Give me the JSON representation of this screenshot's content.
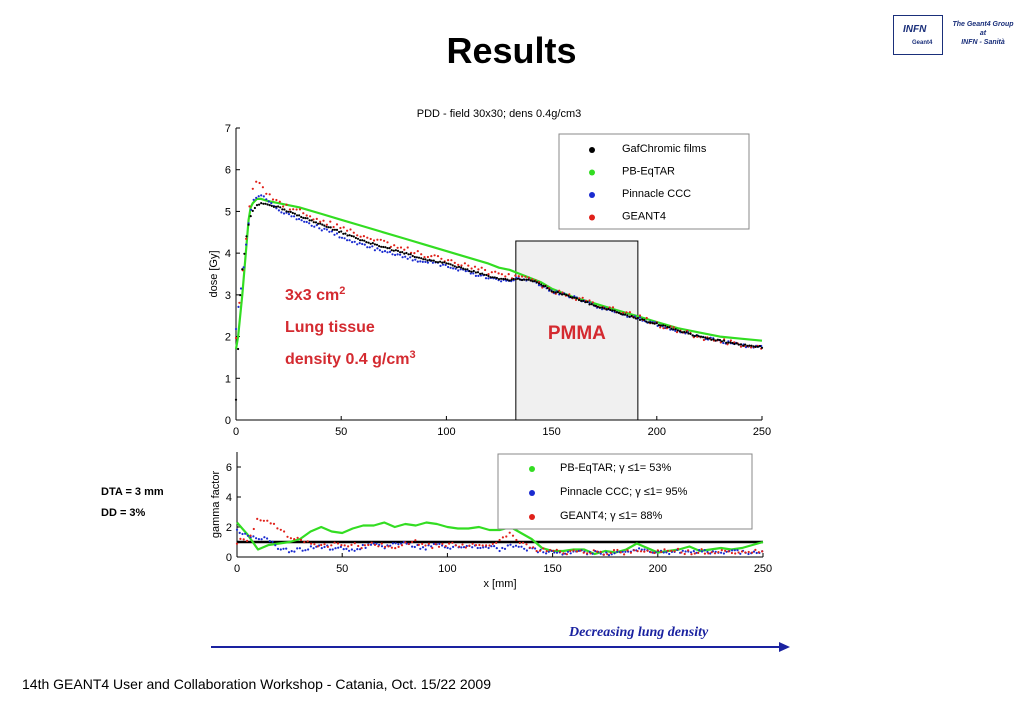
{
  "slide": {
    "title": "Results",
    "logo": {
      "infn": "INFN",
      "geant4": "Geant4",
      "group_lines": [
        "The Geant4 Group",
        "at",
        "INFN - Sanità"
      ]
    },
    "notes": [
      "DTA = 3 mm",
      "DD = 3%"
    ],
    "arrow_caption": "Decreasing lung density",
    "footer": "14th GEANT4 User and Collaboration Workshop - Catania, Oct. 15/22 2009"
  },
  "colors": {
    "black": "#000000",
    "green": "#33dd22",
    "blue": "#1a2bd0",
    "red": "#e0211a",
    "annotation_red": "#d42a30",
    "pmma_fill": "#f0f0f0",
    "arrow_blue": "#1a22a0"
  },
  "chart_data": [
    {
      "type": "line",
      "title": "PDD - field 30x30; dens 0.4g/cm3",
      "xlabel": "",
      "ylabel": "dose [Gy]",
      "xlim": [
        0,
        250
      ],
      "ylim": [
        0,
        7
      ],
      "xticks": [
        0,
        50,
        100,
        150,
        200,
        250
      ],
      "yticks": [
        0,
        1,
        2,
        3,
        4,
        5,
        6,
        7
      ],
      "grid": false,
      "legend": "top-right",
      "annotations": {
        "lines": [
          "3x3 cm",
          "Lung tissue",
          "density 0.4 g/cm"
        ],
        "superscripts": [
          "2",
          "",
          "3"
        ],
        "pmma_label": "PMMA",
        "pmma_range": [
          133,
          191
        ]
      },
      "series": [
        {
          "name": "GafChromic films",
          "style": "dots",
          "x": [
            0,
            1,
            2,
            3,
            4,
            5,
            6,
            7,
            8,
            9,
            10,
            12,
            15,
            20,
            30,
            40,
            50,
            60,
            70,
            80,
            90,
            100,
            110,
            120,
            125,
            130,
            135,
            140,
            145,
            150,
            160,
            170,
            180,
            190,
            200,
            210,
            220,
            230,
            240,
            250
          ],
          "y": [
            0.5,
            1.7,
            3.0,
            3.6,
            4.0,
            4.4,
            4.7,
            4.9,
            5.0,
            5.1,
            5.15,
            5.2,
            5.15,
            5.1,
            4.9,
            4.7,
            4.5,
            4.3,
            4.15,
            4.0,
            3.85,
            3.75,
            3.6,
            3.45,
            3.38,
            3.35,
            3.38,
            3.35,
            3.25,
            3.1,
            2.95,
            2.75,
            2.6,
            2.45,
            2.3,
            2.15,
            2.0,
            1.9,
            1.8,
            1.75
          ]
        },
        {
          "name": "PB-EqTAR",
          "style": "line",
          "x": [
            0,
            1,
            2,
            3,
            4,
            5,
            6,
            7,
            8,
            9,
            10,
            12,
            15,
            20,
            30,
            40,
            50,
            60,
            70,
            80,
            90,
            100,
            110,
            120,
            125,
            130,
            135,
            140,
            145,
            150,
            160,
            170,
            180,
            190,
            200,
            210,
            220,
            230,
            240,
            250
          ],
          "y": [
            1.7,
            2.0,
            2.5,
            3.0,
            3.6,
            4.2,
            4.8,
            5.1,
            5.2,
            5.25,
            5.3,
            5.3,
            5.25,
            5.2,
            5.1,
            4.95,
            4.8,
            4.65,
            4.5,
            4.35,
            4.2,
            4.05,
            3.9,
            3.75,
            3.65,
            3.6,
            3.5,
            3.4,
            3.3,
            3.15,
            2.95,
            2.8,
            2.65,
            2.5,
            2.35,
            2.2,
            2.1,
            2.0,
            1.95,
            1.9
          ]
        },
        {
          "name": "Pinnacle CCC",
          "style": "dots",
          "x": [
            0,
            1,
            2,
            3,
            4,
            5,
            6,
            7,
            8,
            9,
            10,
            12,
            15,
            20,
            30,
            40,
            50,
            60,
            70,
            80,
            90,
            100,
            110,
            120,
            125,
            130,
            135,
            140,
            145,
            150,
            160,
            170,
            180,
            190,
            200,
            210,
            220,
            230,
            240,
            250
          ],
          "y": [
            2.2,
            2.6,
            3.0,
            3.4,
            3.8,
            4.3,
            4.7,
            5.0,
            5.2,
            5.3,
            5.4,
            5.4,
            5.3,
            5.05,
            4.8,
            4.6,
            4.4,
            4.2,
            4.05,
            3.9,
            3.8,
            3.7,
            3.55,
            3.4,
            3.35,
            3.35,
            3.4,
            3.35,
            3.25,
            3.1,
            2.95,
            2.75,
            2.6,
            2.45,
            2.3,
            2.15,
            2.0,
            1.9,
            1.8,
            1.75
          ]
        },
        {
          "name": "GEANT4",
          "style": "dots",
          "x": [
            0,
            1,
            2,
            3,
            4,
            5,
            6,
            7,
            8,
            9,
            10,
            12,
            15,
            20,
            30,
            40,
            50,
            60,
            70,
            80,
            90,
            100,
            110,
            120,
            125,
            130,
            135,
            140,
            145,
            150,
            160,
            170,
            180,
            190,
            200,
            210,
            220,
            230,
            240,
            250
          ],
          "y": [
            2.0,
            2.5,
            3.0,
            3.5,
            4.0,
            4.5,
            5.0,
            5.3,
            5.5,
            5.65,
            5.7,
            5.6,
            5.45,
            5.2,
            5.0,
            4.8,
            4.6,
            4.4,
            4.25,
            4.1,
            3.95,
            3.85,
            3.7,
            3.55,
            3.5,
            3.45,
            3.45,
            3.35,
            3.25,
            3.12,
            2.95,
            2.8,
            2.65,
            2.5,
            2.3,
            2.15,
            2.0,
            1.9,
            1.8,
            1.75
          ]
        }
      ]
    },
    {
      "type": "line",
      "title": "",
      "xlabel": "x [mm]",
      "ylabel": "gamma factor",
      "xlim": [
        0,
        250
      ],
      "ylim": [
        0,
        7
      ],
      "xticks": [
        0,
        50,
        100,
        150,
        200,
        250
      ],
      "yticks": [
        0,
        2,
        4,
        6
      ],
      "grid": false,
      "legend": "top-right",
      "reference_line": 1,
      "series": [
        {
          "name": "PB-EqTAR; γ ≤1= 53%",
          "style": "line",
          "x": [
            0,
            5,
            10,
            15,
            20,
            25,
            30,
            35,
            40,
            45,
            50,
            55,
            60,
            65,
            70,
            75,
            80,
            85,
            90,
            95,
            100,
            105,
            110,
            115,
            120,
            125,
            130,
            135,
            140,
            145,
            150,
            155,
            160,
            165,
            170,
            175,
            180,
            185,
            190,
            195,
            200,
            205,
            210,
            215,
            220,
            225,
            230,
            235,
            240,
            245,
            250
          ],
          "y": [
            2.3,
            1.5,
            0.5,
            0.8,
            0.9,
            1.0,
            1.2,
            1.7,
            2.0,
            1.7,
            1.6,
            1.9,
            2.1,
            2.1,
            2.3,
            2.0,
            2.2,
            2.1,
            2.3,
            2.2,
            2.0,
            1.9,
            1.9,
            2.0,
            1.8,
            1.8,
            2.0,
            1.6,
            1.2,
            0.6,
            0.4,
            0.4,
            0.5,
            0.5,
            0.2,
            0.4,
            0.3,
            0.5,
            0.9,
            0.6,
            0.3,
            0.4,
            0.5,
            0.7,
            0.4,
            0.5,
            0.6,
            0.5,
            0.6,
            0.8,
            1.0
          ]
        },
        {
          "name": "Pinnacle CCC; γ ≤1= 95%",
          "style": "dots",
          "x": [
            0,
            5,
            10,
            15,
            20,
            25,
            30,
            35,
            40,
            45,
            50,
            55,
            60,
            65,
            70,
            75,
            80,
            85,
            90,
            95,
            100,
            105,
            110,
            115,
            120,
            125,
            130,
            135,
            140,
            145,
            150,
            155,
            160,
            165,
            170,
            175,
            180,
            185,
            190,
            195,
            200,
            205,
            210,
            215,
            220,
            225,
            230,
            235,
            240,
            245,
            250
          ],
          "y": [
            1.7,
            1.5,
            1.3,
            1.2,
            0.6,
            0.4,
            0.5,
            0.6,
            0.7,
            0.6,
            0.6,
            0.5,
            0.7,
            0.8,
            0.7,
            0.8,
            0.9,
            0.7,
            0.6,
            0.9,
            0.6,
            0.7,
            0.8,
            0.6,
            0.7,
            0.5,
            0.7,
            0.6,
            0.5,
            0.4,
            0.3,
            0.2,
            0.4,
            0.3,
            0.3,
            0.2,
            0.3,
            0.3,
            0.5,
            0.4,
            0.3,
            0.3,
            0.4,
            0.3,
            0.4,
            0.3,
            0.3,
            0.4,
            0.3,
            0.3,
            0.3
          ]
        },
        {
          "name": "GEANT4; γ ≤1= 88%",
          "style": "dots",
          "x": [
            0,
            5,
            10,
            15,
            20,
            25,
            30,
            35,
            40,
            45,
            50,
            55,
            60,
            65,
            70,
            75,
            80,
            85,
            90,
            95,
            100,
            105,
            110,
            115,
            120,
            125,
            130,
            135,
            140,
            145,
            150,
            155,
            160,
            165,
            170,
            175,
            180,
            185,
            190,
            195,
            200,
            205,
            210,
            215,
            220,
            225,
            230,
            235,
            240,
            245,
            250
          ],
          "y": [
            1.0,
            1.2,
            2.5,
            2.4,
            1.8,
            1.4,
            1.1,
            0.9,
            0.7,
            0.8,
            0.9,
            0.8,
            0.7,
            0.9,
            0.8,
            0.7,
            0.9,
            1.0,
            0.8,
            0.7,
            0.9,
            0.8,
            0.7,
            0.9,
            0.8,
            1.2,
            1.5,
            1.0,
            0.6,
            0.5,
            0.4,
            0.3,
            0.4,
            0.4,
            0.3,
            0.3,
            0.4,
            0.3,
            0.5,
            0.4,
            0.3,
            0.4,
            0.4,
            0.3,
            0.4,
            0.3,
            0.3,
            0.4,
            0.3,
            0.4,
            0.4
          ]
        }
      ]
    }
  ]
}
